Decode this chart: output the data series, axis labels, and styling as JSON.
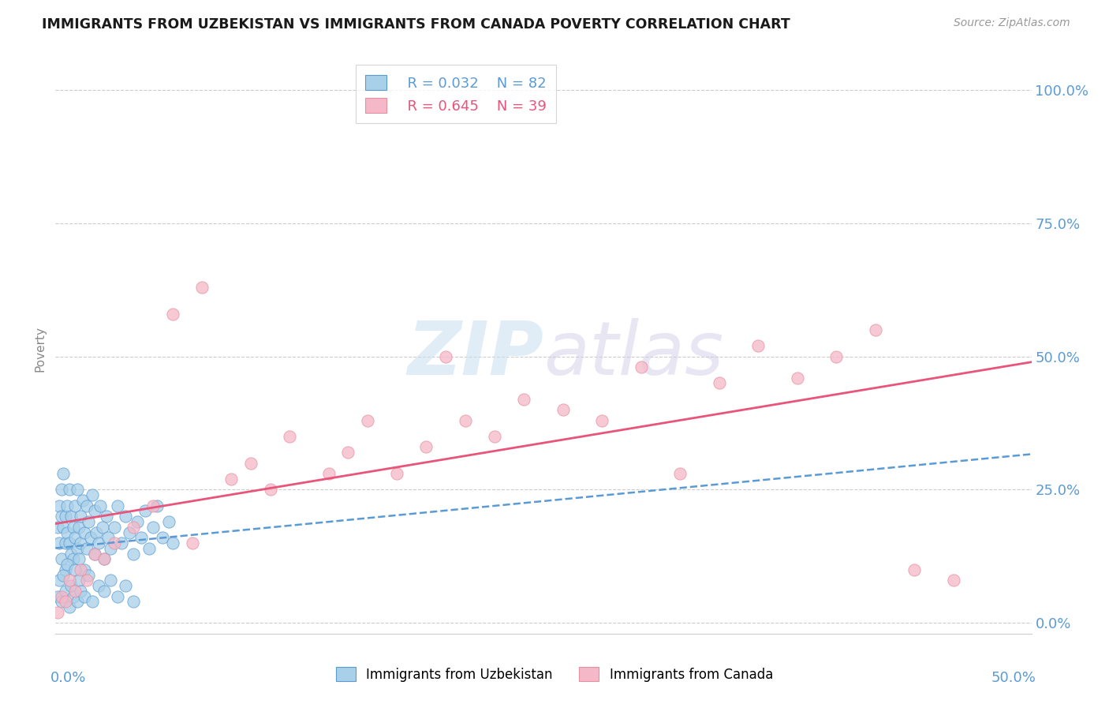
{
  "title": "IMMIGRANTS FROM UZBEKISTAN VS IMMIGRANTS FROM CANADA POVERTY CORRELATION CHART",
  "source": "Source: ZipAtlas.com",
  "ylabel": "Poverty",
  "yticks": [
    "0.0%",
    "25.0%",
    "50.0%",
    "75.0%",
    "100.0%"
  ],
  "ytick_vals": [
    0.0,
    0.25,
    0.5,
    0.75,
    1.0
  ],
  "xlim": [
    0.0,
    0.5
  ],
  "ylim": [
    -0.02,
    1.05
  ],
  "legend_r1": "R = 0.032",
  "legend_n1": "N = 82",
  "legend_r2": "R = 0.645",
  "legend_n2": "N = 39",
  "legend_label1": "Immigrants from Uzbekistan",
  "legend_label2": "Immigrants from Canada",
  "color_uzbekistan": "#a8d0e8",
  "color_canada": "#f4b8c8",
  "line_color_uzbekistan": "#5b9bd5",
  "line_color_canada": "#e8547a",
  "watermark_zip": "ZIP",
  "watermark_atlas": "atlas",
  "title_color": "#1a1a1a",
  "axis_label_color": "#5b9bd5",
  "ylabel_color": "#888888",
  "background_color": "#ffffff",
  "grid_color": "#cccccc",
  "uzbekistan_x": [
    0.001,
    0.002,
    0.002,
    0.003,
    0.003,
    0.003,
    0.004,
    0.004,
    0.005,
    0.005,
    0.005,
    0.006,
    0.006,
    0.007,
    0.007,
    0.008,
    0.008,
    0.009,
    0.009,
    0.01,
    0.01,
    0.011,
    0.011,
    0.012,
    0.012,
    0.013,
    0.013,
    0.014,
    0.015,
    0.015,
    0.016,
    0.016,
    0.017,
    0.018,
    0.019,
    0.02,
    0.02,
    0.021,
    0.022,
    0.023,
    0.024,
    0.025,
    0.026,
    0.027,
    0.028,
    0.03,
    0.032,
    0.034,
    0.036,
    0.038,
    0.04,
    0.042,
    0.044,
    0.046,
    0.048,
    0.05,
    0.052,
    0.055,
    0.058,
    0.06,
    0.001,
    0.002,
    0.003,
    0.004,
    0.005,
    0.006,
    0.007,
    0.008,
    0.009,
    0.01,
    0.011,
    0.012,
    0.013,
    0.015,
    0.017,
    0.019,
    0.022,
    0.025,
    0.028,
    0.032,
    0.036,
    0.04
  ],
  "uzbekistan_y": [
    0.18,
    0.22,
    0.15,
    0.2,
    0.25,
    0.12,
    0.18,
    0.28,
    0.15,
    0.2,
    0.1,
    0.22,
    0.17,
    0.15,
    0.25,
    0.13,
    0.2,
    0.18,
    0.12,
    0.22,
    0.16,
    0.14,
    0.25,
    0.18,
    0.12,
    0.2,
    0.15,
    0.23,
    0.17,
    0.1,
    0.22,
    0.14,
    0.19,
    0.16,
    0.24,
    0.13,
    0.21,
    0.17,
    0.15,
    0.22,
    0.18,
    0.12,
    0.2,
    0.16,
    0.14,
    0.18,
    0.22,
    0.15,
    0.2,
    0.17,
    0.13,
    0.19,
    0.16,
    0.21,
    0.14,
    0.18,
    0.22,
    0.16,
    0.19,
    0.15,
    0.05,
    0.08,
    0.04,
    0.09,
    0.06,
    0.11,
    0.03,
    0.07,
    0.05,
    0.1,
    0.04,
    0.08,
    0.06,
    0.05,
    0.09,
    0.04,
    0.07,
    0.06,
    0.08,
    0.05,
    0.07,
    0.04
  ],
  "canada_x": [
    0.001,
    0.003,
    0.005,
    0.007,
    0.01,
    0.013,
    0.016,
    0.02,
    0.025,
    0.03,
    0.04,
    0.05,
    0.06,
    0.07,
    0.075,
    0.09,
    0.1,
    0.11,
    0.12,
    0.14,
    0.15,
    0.16,
    0.175,
    0.19,
    0.2,
    0.21,
    0.225,
    0.24,
    0.26,
    0.28,
    0.3,
    0.32,
    0.34,
    0.36,
    0.38,
    0.4,
    0.42,
    0.44,
    0.46
  ],
  "canada_y": [
    0.02,
    0.05,
    0.04,
    0.08,
    0.06,
    0.1,
    0.08,
    0.13,
    0.12,
    0.15,
    0.18,
    0.22,
    0.58,
    0.15,
    0.63,
    0.27,
    0.3,
    0.25,
    0.35,
    0.28,
    0.32,
    0.38,
    0.28,
    0.33,
    0.5,
    0.38,
    0.35,
    0.42,
    0.4,
    0.38,
    0.48,
    0.28,
    0.45,
    0.52,
    0.46,
    0.5,
    0.55,
    0.1,
    0.08
  ]
}
